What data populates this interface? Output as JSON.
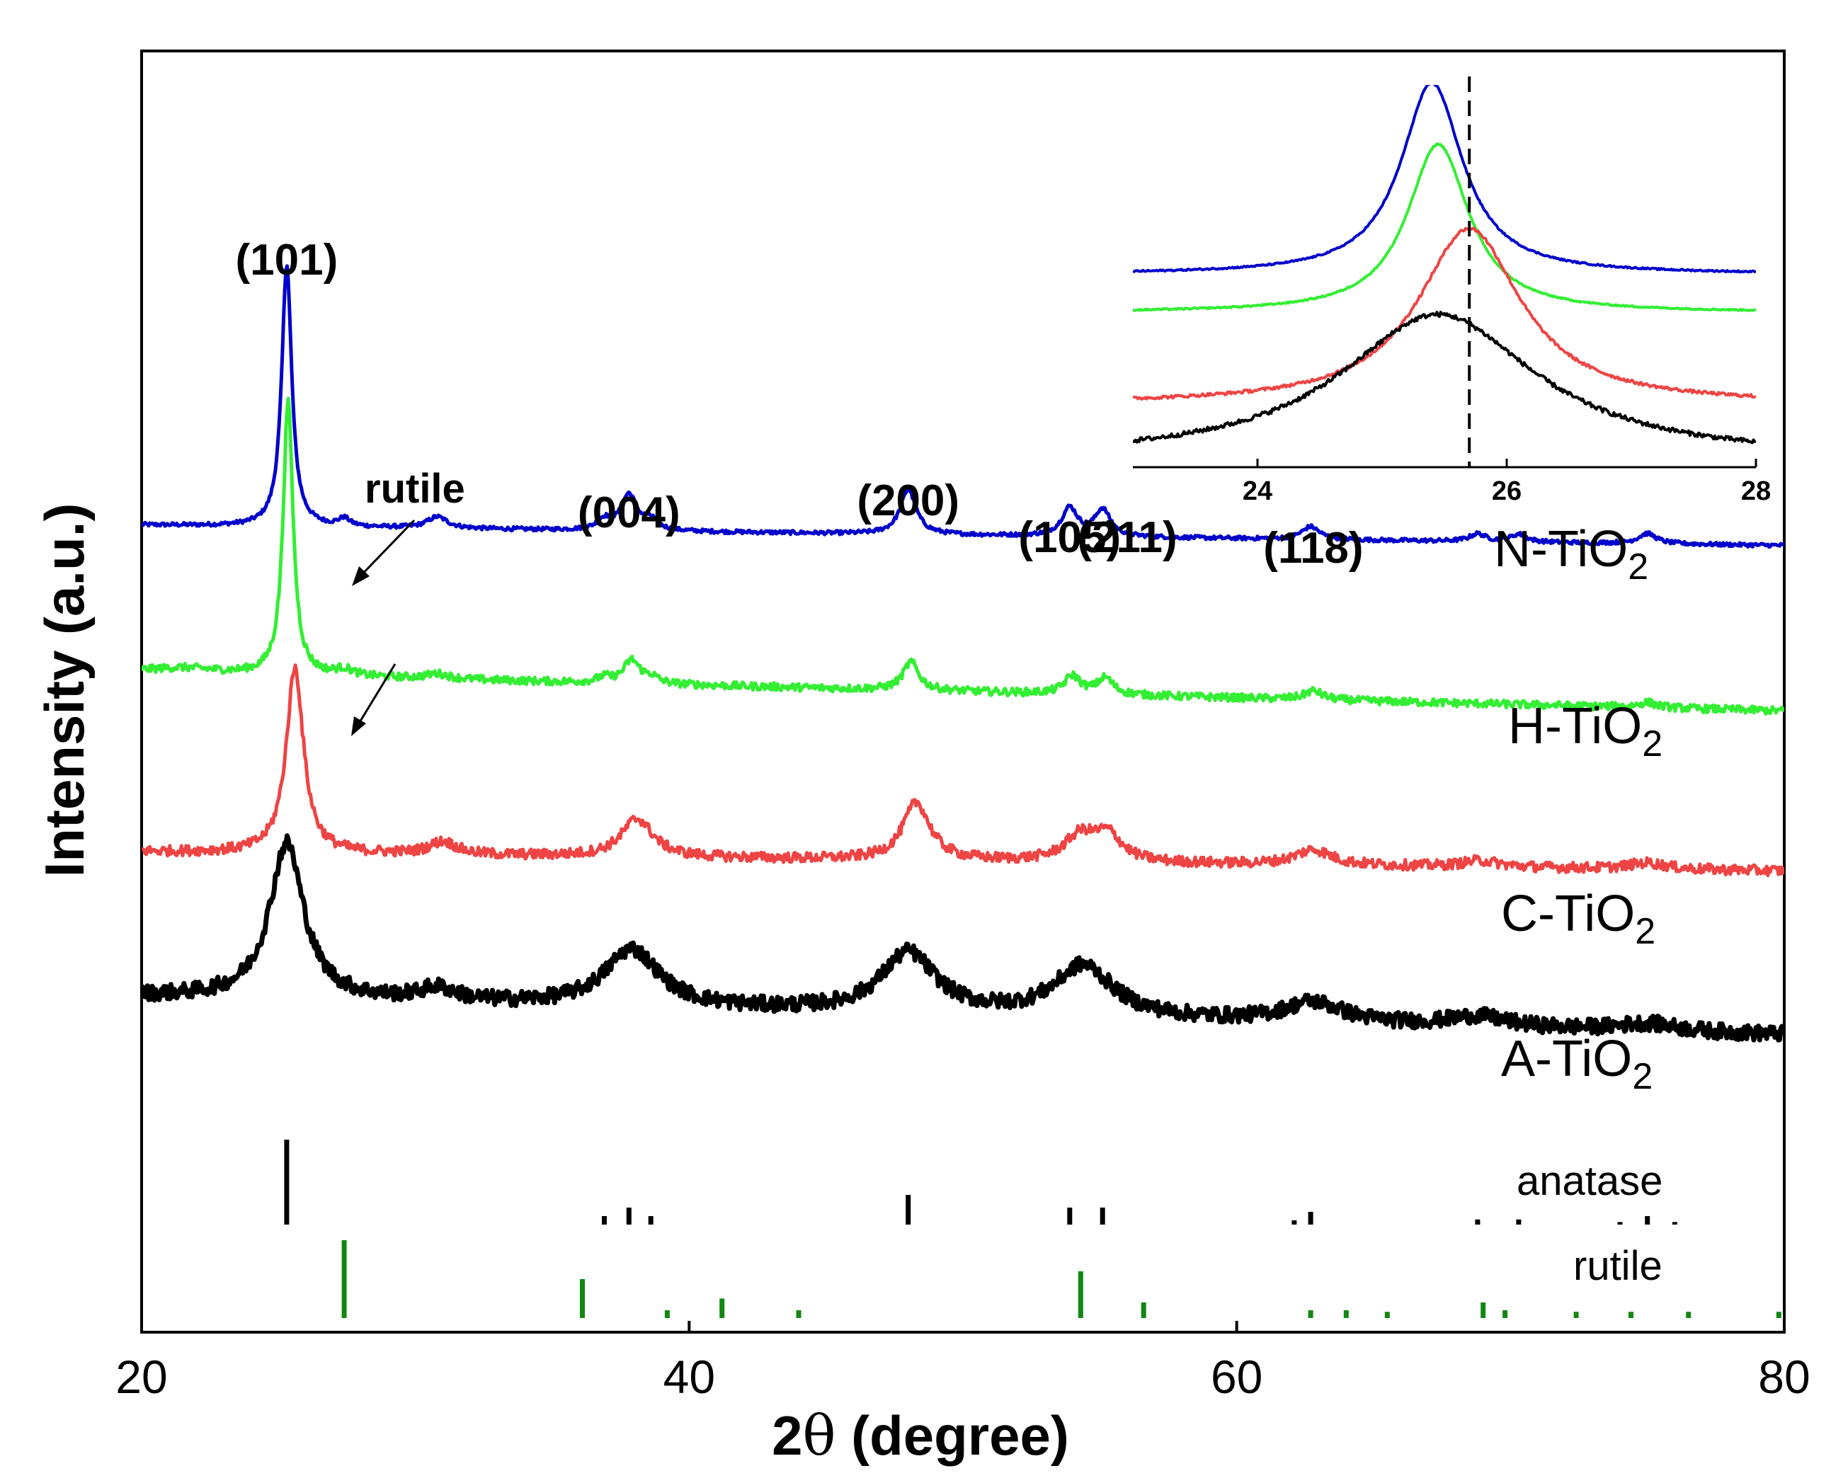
{
  "chart_data": {
    "type": "line",
    "title": "",
    "xlabel_prefix": "2",
    "xlabel_theta": "θ",
    "xlabel_suffix": " (degree)",
    "xlabel": "2θ (degree)",
    "ylabel": "Intensity (a.u.)",
    "xlim": [
      20,
      80
    ],
    "xticks": [
      20,
      40,
      60,
      80
    ],
    "grid": false,
    "series": [
      {
        "name": "N-TiO2",
        "label_main": "N-TiO",
        "label_sub": "2",
        "color": "#0000cc",
        "baseline_start": 0.63,
        "baseline_end": 0.614,
        "noise": 0.0015,
        "peaks": [
          [
            25.3,
            0.205,
            0.22
          ],
          [
            27.4,
            0.006,
            0.25
          ],
          [
            30.8,
            0.009,
            0.45
          ],
          [
            36.9,
            0.008,
            0.3
          ],
          [
            37.8,
            0.028,
            0.35
          ],
          [
            38.6,
            0.008,
            0.3
          ],
          [
            48.0,
            0.035,
            0.35
          ],
          [
            53.9,
            0.022,
            0.35
          ],
          [
            55.1,
            0.021,
            0.35
          ],
          [
            62.7,
            0.01,
            0.4
          ],
          [
            68.8,
            0.006,
            0.35
          ],
          [
            70.3,
            0.006,
            0.35
          ],
          [
            75.0,
            0.008,
            0.4
          ]
        ]
      },
      {
        "name": "H-TiO2",
        "label_main": "H-TiO",
        "label_sub": "2",
        "color": "#33ee33",
        "baseline_start": 0.515,
        "baseline_end": 0.485,
        "noise": 0.003,
        "peaks": [
          [
            25.35,
            0.213,
            0.22
          ],
          [
            21.5,
            0.004,
            1.5
          ],
          [
            27.4,
            0.005,
            0.4
          ],
          [
            30.8,
            0.004,
            0.5
          ],
          [
            36.9,
            0.004,
            0.3
          ],
          [
            37.9,
            0.018,
            0.35
          ],
          [
            38.6,
            0.005,
            0.3
          ],
          [
            48.1,
            0.022,
            0.35
          ],
          [
            54.0,
            0.014,
            0.35
          ],
          [
            55.2,
            0.013,
            0.35
          ],
          [
            62.8,
            0.007,
            0.4
          ],
          [
            75.0,
            0.004,
            0.4
          ]
        ]
      },
      {
        "name": "C-TiO2",
        "label_main": "C-TiO",
        "label_sub": "2",
        "color": "#ee4444",
        "baseline_start": 0.375,
        "baseline_end": 0.36,
        "noise": 0.004,
        "peaks": [
          [
            25.6,
            0.145,
            0.38
          ],
          [
            31.0,
            0.01,
            0.6
          ],
          [
            38.1,
            0.03,
            0.7
          ],
          [
            48.3,
            0.045,
            0.6
          ],
          [
            54.3,
            0.02,
            0.7
          ],
          [
            55.3,
            0.02,
            0.6
          ],
          [
            62.8,
            0.012,
            0.8
          ],
          [
            68.9,
            0.005,
            0.8
          ],
          [
            75.0,
            0.005,
            0.8
          ]
        ]
      },
      {
        "name": "A-TiO2",
        "label_main": "A-TiO",
        "label_sub": "2",
        "color": "#000000",
        "baseline_start": 0.262,
        "baseline_end": 0.232,
        "noise": 0.006,
        "peaks": [
          [
            25.3,
            0.122,
            0.75
          ],
          [
            30.8,
            0.01,
            0.8
          ],
          [
            37.9,
            0.045,
            1.2
          ],
          [
            48.0,
            0.047,
            1.2
          ],
          [
            54.4,
            0.04,
            1.3
          ],
          [
            62.8,
            0.016,
            1.3
          ],
          [
            68.8,
            0.008,
            1.3
          ],
          [
            75.0,
            0.006,
            1.3
          ]
        ]
      }
    ],
    "peak_labels": [
      {
        "text": "(101)",
        "x": 25.3
      },
      {
        "text": "(004)",
        "x": 37.8
      },
      {
        "text": "(200)",
        "x": 48.0
      },
      {
        "text": "(105)",
        "x": 53.9
      },
      {
        "text": "(211)",
        "x": 56.0
      },
      {
        "text": "(118)",
        "x": 62.8
      }
    ],
    "rutile_annotation": "rutile",
    "reference_patterns": [
      {
        "name": "anatase",
        "color": "#000000",
        "positions": [
          25.3,
          36.9,
          37.8,
          38.6,
          48.0,
          53.9,
          55.1,
          62.1,
          62.7,
          68.8,
          70.3,
          74.0,
          75.0,
          76.0
        ],
        "intensities": [
          100,
          10,
          20,
          10,
          35,
          20,
          20,
          5,
          15,
          6,
          6,
          3,
          10,
          3
        ]
      },
      {
        "name": "rutile",
        "color": "#118811",
        "positions": [
          27.4,
          36.1,
          39.2,
          41.2,
          44.0,
          54.3,
          56.6,
          62.7,
          64.0,
          65.5,
          69.0,
          69.8,
          72.4,
          74.4,
          76.5,
          79.8
        ],
        "intensities": [
          100,
          50,
          10,
          25,
          10,
          60,
          20,
          10,
          10,
          8,
          20,
          10,
          8,
          8,
          8,
          8
        ]
      }
    ],
    "inset": {
      "xlim": [
        23,
        28
      ],
      "xticks": [
        24,
        26,
        28
      ],
      "dashed_line_x": 25.7,
      "series": [
        {
          "name": "N-TiO2",
          "color": "#0000cc",
          "center": 25.4,
          "width": 0.3,
          "height": 0.5,
          "base": 0.505,
          "noise": 0.002
        },
        {
          "name": "H-TiO2",
          "color": "#33ee33",
          "center": 25.45,
          "width": 0.3,
          "height": 0.44,
          "base": 0.405,
          "noise": 0.002
        },
        {
          "name": "C-TiO2",
          "color": "#ee4444",
          "center": 25.7,
          "width": 0.5,
          "height": 0.46,
          "base": 0.165,
          "noise": 0.004
        },
        {
          "name": "A-TiO2",
          "color": "#000000",
          "center": 25.45,
          "width": 0.95,
          "height": 0.38,
          "base": 0.02,
          "noise": 0.006
        }
      ]
    }
  }
}
